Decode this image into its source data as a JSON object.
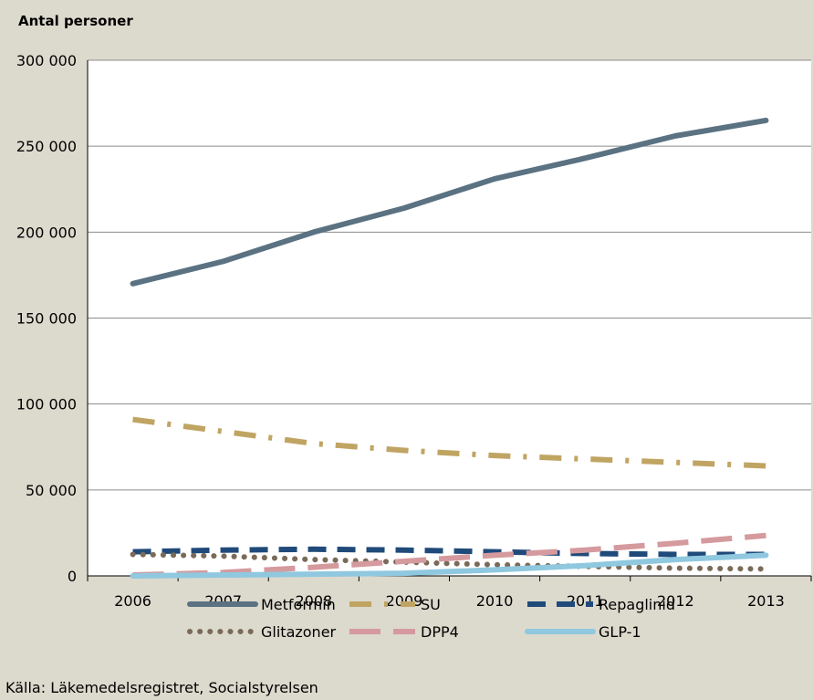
{
  "chart_data": {
    "type": "line",
    "ylabel": "Antal personer",
    "xlabel": "",
    "categories": [
      "2006",
      "2007",
      "2008",
      "2009",
      "2010",
      "2011",
      "2012",
      "2013"
    ],
    "ylim": [
      0,
      300000
    ],
    "yticks": [
      0,
      50000,
      100000,
      150000,
      200000,
      250000,
      300000
    ],
    "ytick_labels": [
      "0",
      "50 000",
      "100 000",
      "150 000",
      "200 000",
      "250 000",
      "300 000"
    ],
    "grid": "horizontal",
    "legend_position": "bottom",
    "series": [
      {
        "name": "Metformin",
        "values": [
          170000,
          183000,
          200000,
          214000,
          231000,
          243000,
          256000,
          265000
        ],
        "color": "#5a7282",
        "style": "solid"
      },
      {
        "name": "SU",
        "values": [
          91000,
          84000,
          77000,
          73000,
          70000,
          68000,
          66000,
          64000
        ],
        "color": "#c0a462",
        "style": "dashdot"
      },
      {
        "name": "Repaglinid",
        "values": [
          14000,
          15000,
          15500,
          15000,
          14000,
          13000,
          12500,
          12500
        ],
        "color": "#1f4a7a",
        "style": "dashed"
      },
      {
        "name": "Glitazoner",
        "values": [
          12500,
          11500,
          9500,
          8000,
          6500,
          5500,
          4500,
          4000
        ],
        "color": "#7a6a58",
        "style": "dotted"
      },
      {
        "name": "DPP4",
        "values": [
          500,
          2000,
          5000,
          8500,
          12000,
          15000,
          19000,
          23500
        ],
        "color": "#d59a9e",
        "style": "longdash"
      },
      {
        "name": "GLP-1",
        "values": [
          0,
          500,
          1000,
          1500,
          3500,
          6000,
          9500,
          12000
        ],
        "color": "#8fc8df",
        "style": "solid"
      }
    ]
  },
  "source": "Källa: Läkemedelsregistret, Socialstyrelsen"
}
